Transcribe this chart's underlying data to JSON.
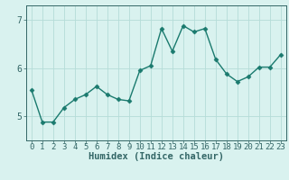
{
  "x": [
    0,
    1,
    2,
    3,
    4,
    5,
    6,
    7,
    8,
    9,
    10,
    11,
    12,
    13,
    14,
    15,
    16,
    17,
    18,
    19,
    20,
    21,
    22,
    23
  ],
  "y": [
    5.55,
    4.88,
    4.88,
    5.18,
    5.35,
    5.45,
    5.62,
    5.45,
    5.35,
    5.32,
    5.95,
    6.05,
    6.82,
    6.35,
    6.88,
    6.75,
    6.82,
    6.18,
    5.88,
    5.72,
    5.82,
    6.02,
    6.02,
    6.28
  ],
  "line_color": "#1a7a6e",
  "marker": "D",
  "marker_size": 2.5,
  "line_width": 1.0,
  "xlabel": "Humidex (Indice chaleur)",
  "bg_color": "#d9f2ef",
  "grid_color": "#b5dcd8",
  "ylim": [
    4.5,
    7.3
  ],
  "xlim": [
    -0.5,
    23.5
  ],
  "yticks": [
    5,
    6,
    7
  ],
  "xticks": [
    0,
    1,
    2,
    3,
    4,
    5,
    6,
    7,
    8,
    9,
    10,
    11,
    12,
    13,
    14,
    15,
    16,
    17,
    18,
    19,
    20,
    21,
    22,
    23
  ],
  "xlabel_fontsize": 7.5,
  "tick_fontsize": 6.5,
  "axis_color": "#336666"
}
